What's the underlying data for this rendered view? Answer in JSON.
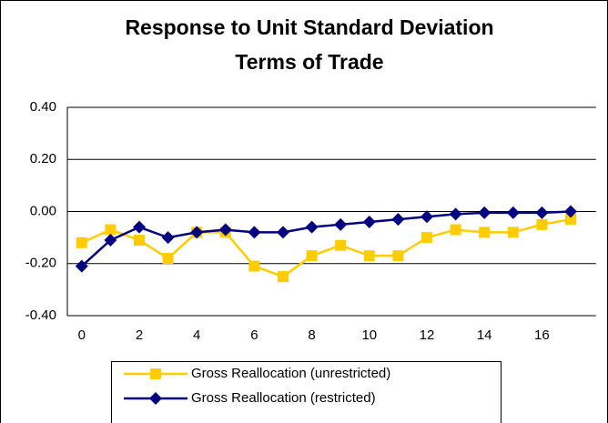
{
  "chart_data": {
    "type": "line",
    "title": "Response to Unit Standard Deviation",
    "subtitle": "Terms of Trade",
    "categories": [
      "0",
      null,
      "2",
      null,
      "4",
      null,
      "6",
      null,
      "8",
      null,
      "10",
      null,
      "12",
      null,
      "14",
      null,
      "16",
      null
    ],
    "series": [
      {
        "name": "Gross Reallocation (unrestricted)",
        "color": "#ffcc00",
        "marker": "square",
        "values": [
          -0.12,
          -0.07,
          -0.11,
          -0.18,
          -0.08,
          -0.08,
          -0.21,
          -0.25,
          -0.17,
          -0.13,
          -0.17,
          -0.17,
          -0.1,
          -0.07,
          -0.08,
          -0.08,
          -0.05,
          -0.03
        ]
      },
      {
        "name": "Gross Reallocation (restricted)",
        "color": "#000080",
        "marker": "diamond",
        "values": [
          -0.21,
          -0.11,
          -0.06,
          -0.1,
          -0.08,
          -0.07,
          -0.08,
          -0.08,
          -0.06,
          -0.05,
          -0.04,
          -0.03,
          -0.02,
          -0.01,
          -0.005,
          -0.005,
          -0.005,
          0.0
        ]
      }
    ],
    "ylim": [
      -0.4,
      0.4
    ],
    "yticks": [
      {
        "value": 0.4,
        "label": "0.40"
      },
      {
        "value": 0.2,
        "label": "0.20"
      },
      {
        "value": 0,
        "label": "0.00"
      },
      {
        "value": -0.2,
        "label": "-0.20"
      },
      {
        "value": -0.4,
        "label": "-0.40"
      }
    ],
    "grid": true,
    "legend": "bottom"
  }
}
